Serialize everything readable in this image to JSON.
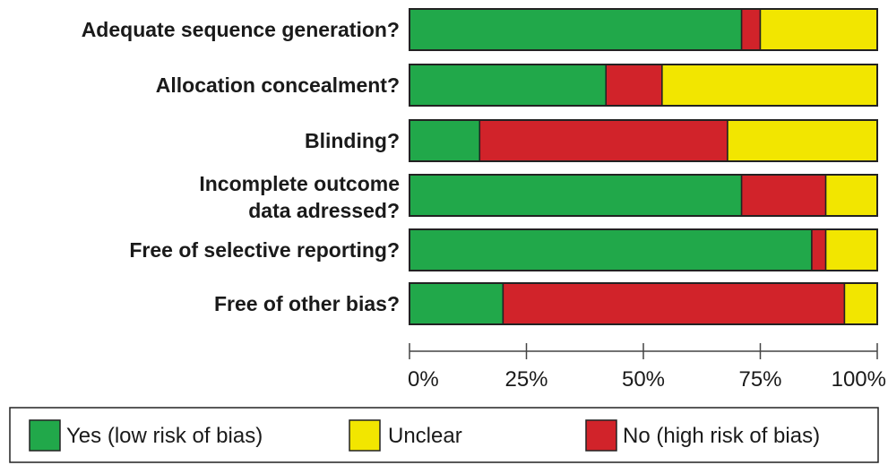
{
  "chart_data": {
    "type": "bar",
    "stacked": true,
    "horizontal": true,
    "categories": [
      "Adequate sequence generation?",
      "Allocation concealment?",
      "Blinding?",
      "Incomplete outcome data adressed?",
      "Free of selective reporting?",
      "Free of other bias?"
    ],
    "series": [
      {
        "name": "Yes (low risk of bias)",
        "color": "#21a84a",
        "values": [
          71,
          42,
          15,
          71,
          86,
          20
        ]
      },
      {
        "name": "No (high risk of bias)",
        "color": "#d1232a",
        "values": [
          4,
          12,
          53,
          18,
          3,
          73
        ]
      },
      {
        "name": "Unclear",
        "color": "#f2e600",
        "values": [
          25,
          46,
          32,
          11,
          11,
          7
        ]
      }
    ],
    "xlim": [
      0,
      100
    ],
    "xticks": [
      "0%",
      "25%",
      "50%",
      "75%",
      "100%"
    ],
    "legend_position": "bottom",
    "legend": [
      {
        "label": "Yes (low risk of bias)",
        "color": "#21a84a"
      },
      {
        "label": "Unclear",
        "color": "#f2e600"
      },
      {
        "label": "No (high risk of bias)",
        "color": "#d1232a"
      }
    ],
    "grid": false
  }
}
